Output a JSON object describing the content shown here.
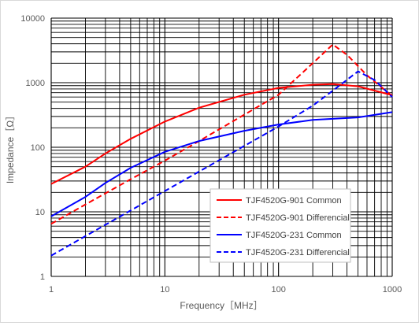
{
  "chart_data": {
    "type": "line",
    "title": "",
    "xlabel": "Frequency［MHz］",
    "ylabel": "Impedance［Ω］",
    "x_scale": "log",
    "y_scale": "log",
    "xlim": [
      1,
      1000
    ],
    "ylim": [
      1,
      10000
    ],
    "grid": true,
    "legend_position": "bottom-right",
    "x_ticks": [
      "1",
      "10",
      "100",
      "1000"
    ],
    "y_ticks": [
      "1",
      "10",
      "100",
      "1000",
      "10000"
    ],
    "series": [
      {
        "name": "TJF4520G-901 Common",
        "color": "#ff0000",
        "dash": "solid",
        "points": [
          [
            1,
            27
          ],
          [
            2,
            50
          ],
          [
            3,
            80
          ],
          [
            5,
            135
          ],
          [
            10,
            250
          ],
          [
            20,
            410
          ],
          [
            50,
            650
          ],
          [
            100,
            830
          ],
          [
            200,
            930
          ],
          [
            300,
            950
          ],
          [
            500,
            880
          ],
          [
            1000,
            640
          ]
        ]
      },
      {
        "name": "TJF4520G-901 Differencial",
        "color": "#ff0000",
        "dash": "dashed",
        "points": [
          [
            1,
            6.5
          ],
          [
            2,
            13
          ],
          [
            5,
            32
          ],
          [
            10,
            62
          ],
          [
            20,
            125
          ],
          [
            50,
            320
          ],
          [
            100,
            650
          ],
          [
            200,
            2000
          ],
          [
            300,
            3900
          ],
          [
            400,
            2700
          ],
          [
            600,
            1300
          ],
          [
            1000,
            620
          ]
        ]
      },
      {
        "name": "TJF4520G-231 Common",
        "color": "#0000ff",
        "dash": "solid",
        "points": [
          [
            1,
            8.5
          ],
          [
            2,
            17
          ],
          [
            3,
            28
          ],
          [
            5,
            48
          ],
          [
            10,
            85
          ],
          [
            20,
            125
          ],
          [
            50,
            180
          ],
          [
            100,
            225
          ],
          [
            200,
            265
          ],
          [
            500,
            290
          ],
          [
            1000,
            350
          ]
        ]
      },
      {
        "name": "TJF4520G-231 Differencial",
        "color": "#0000ff",
        "dash": "dashed",
        "points": [
          [
            1,
            2.1
          ],
          [
            2,
            4.2
          ],
          [
            5,
            10.5
          ],
          [
            10,
            21
          ],
          [
            20,
            42
          ],
          [
            50,
            105
          ],
          [
            100,
            210
          ],
          [
            200,
            440
          ],
          [
            300,
            750
          ],
          [
            500,
            1500
          ],
          [
            700,
            1100
          ],
          [
            1000,
            600
          ]
        ]
      }
    ]
  }
}
